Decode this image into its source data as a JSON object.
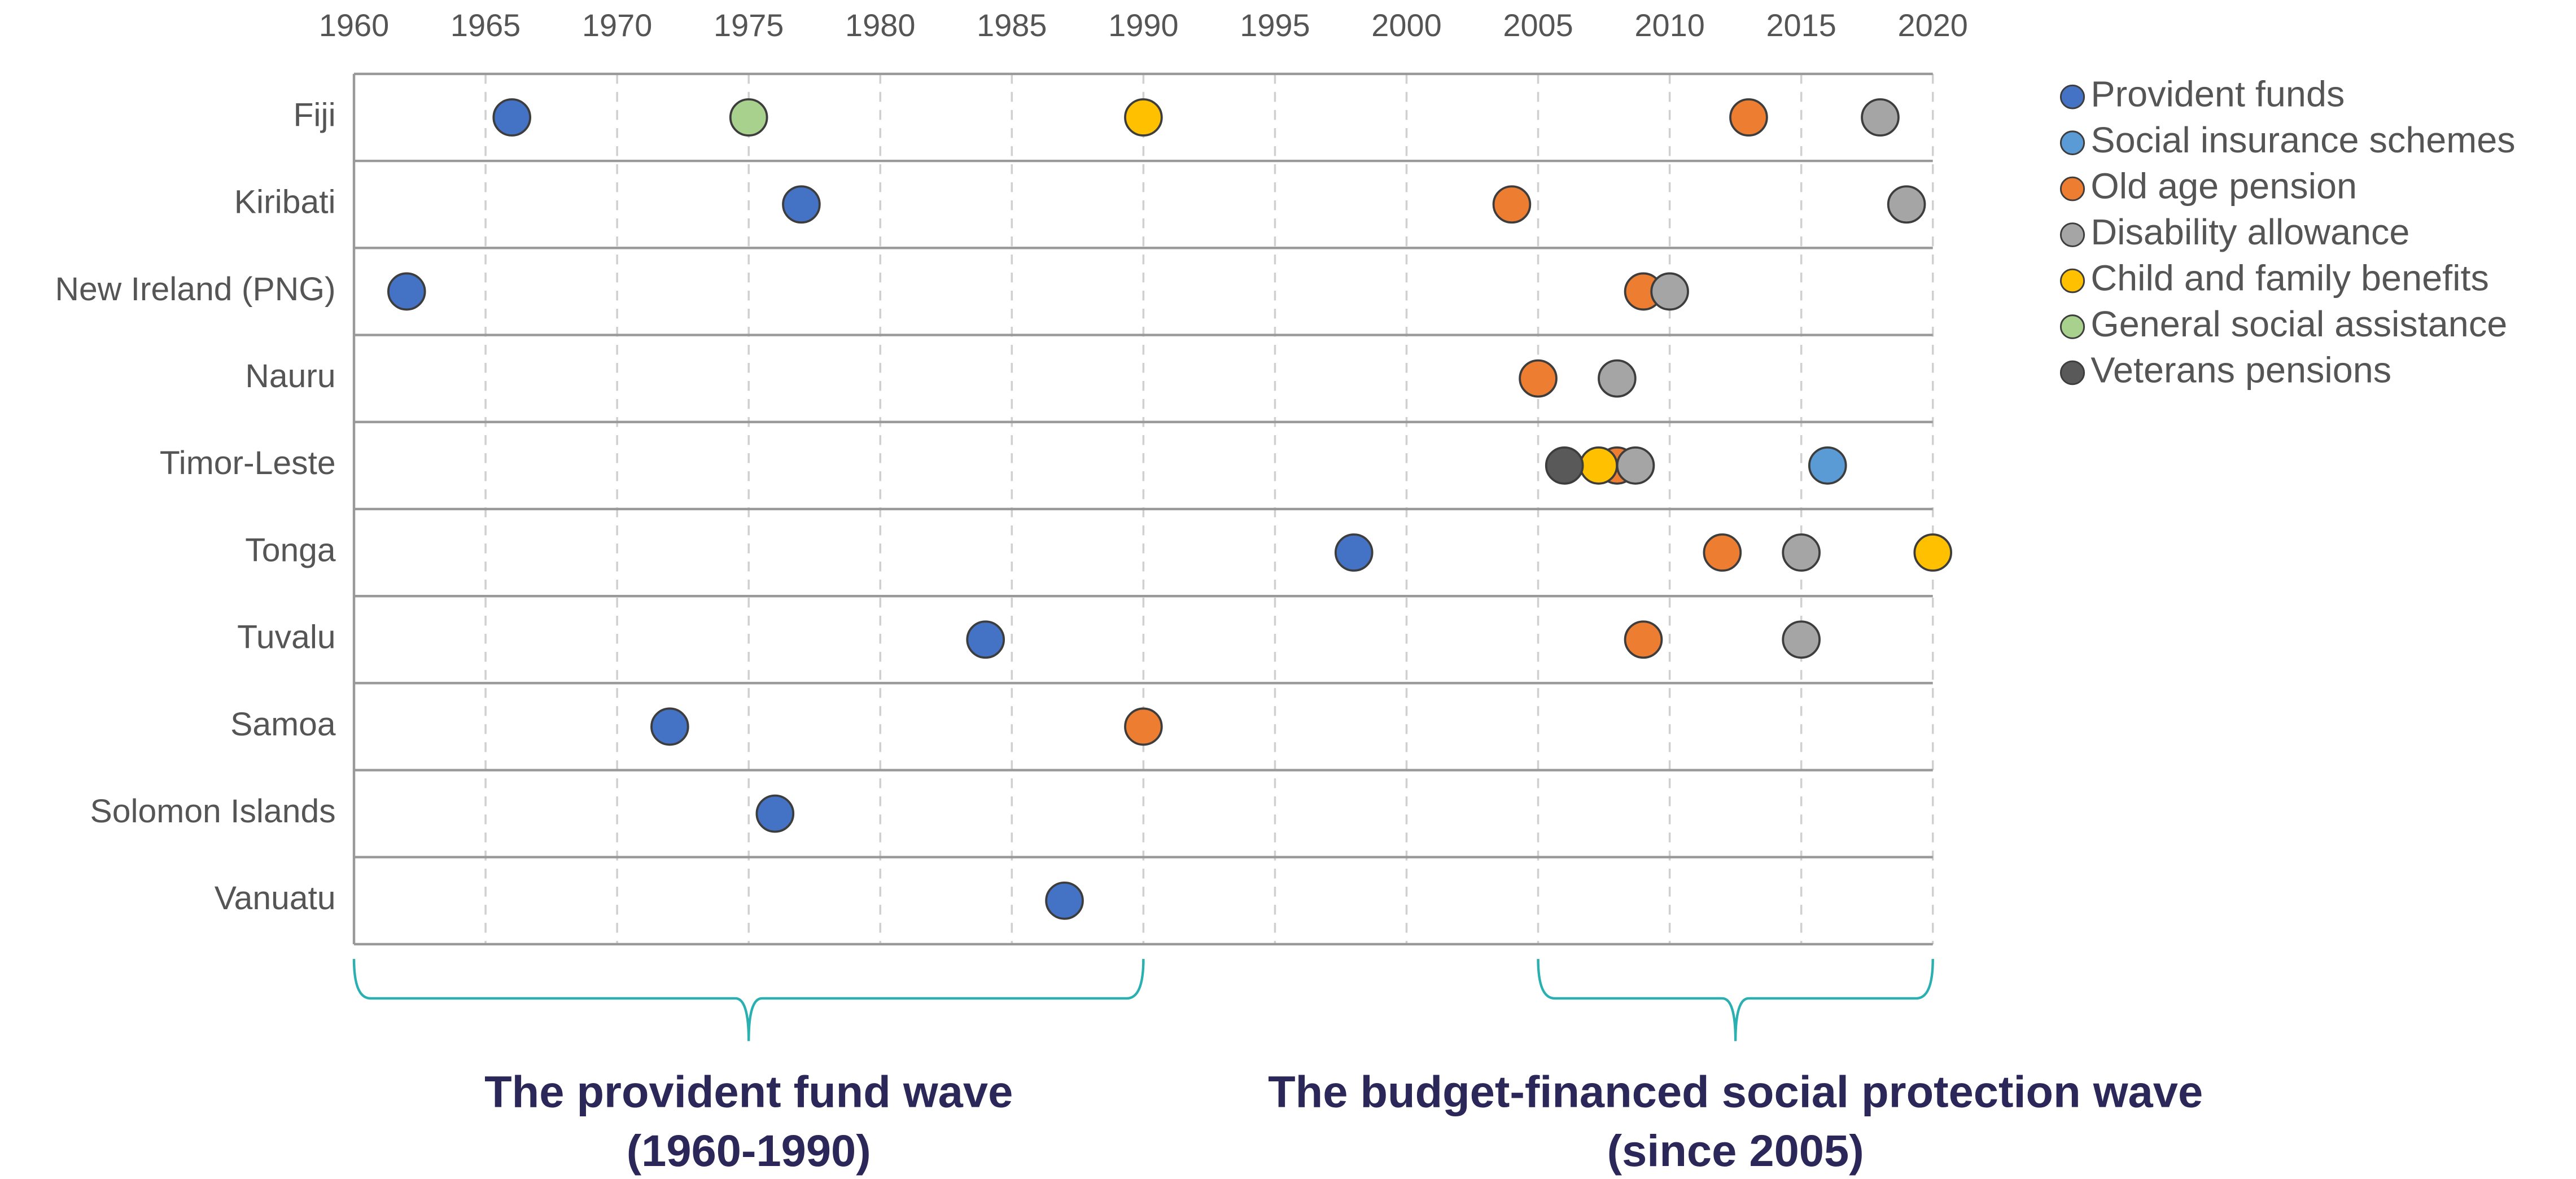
{
  "chart_data": {
    "type": "timeline",
    "categories": [
      "Fiji",
      "Kiribati",
      "New Ireland (PNG)",
      "Nauru",
      "Timor-Leste",
      "Tonga",
      "Tuvalu",
      "Samoa",
      "Solomon Islands",
      "Vanuatu"
    ],
    "series": [
      {
        "name": "Provident funds",
        "color": "#4472c4",
        "values": [
          1966,
          1977,
          1962,
          null,
          null,
          1998,
          1984,
          1972,
          1976,
          1987
        ]
      },
      {
        "name": "Social insurance schemes",
        "color": "#5b9bd5",
        "values": [
          null,
          null,
          null,
          null,
          2016,
          null,
          null,
          null,
          null,
          null
        ]
      },
      {
        "name": "Old age pension",
        "color": "#ed7d31",
        "values": [
          2013,
          2004,
          2009,
          2005,
          2008,
          2012,
          2009,
          1990,
          null,
          null
        ]
      },
      {
        "name": "Disability allowance",
        "color": "#a5a5a5",
        "values": [
          2018,
          2019,
          2010,
          2008,
          2008.7,
          2015,
          2015,
          null,
          null,
          null
        ]
      },
      {
        "name": "Child and family benefits",
        "color": "#ffc000",
        "values": [
          1990,
          null,
          null,
          null,
          2007.3,
          2020,
          null,
          null,
          null,
          null
        ]
      },
      {
        "name": "General social assistance",
        "color": "#a9d18e",
        "values": [
          1975,
          null,
          null,
          null,
          null,
          null,
          null,
          null,
          null,
          null
        ]
      },
      {
        "name": "Veterans pensions",
        "color": "#595959",
        "values": [
          null,
          null,
          null,
          null,
          2006,
          null,
          null,
          null,
          null,
          null
        ]
      }
    ],
    "xlim": [
      1960,
      2020
    ],
    "xticks": [
      1960,
      1965,
      1970,
      1975,
      1980,
      1985,
      1990,
      1995,
      2000,
      2005,
      2010,
      2015,
      2020
    ],
    "grid": true,
    "legend": "right",
    "annotations": [
      {
        "lines": [
          "The provident fund wave",
          "(1960-1990)"
        ],
        "range": [
          1960,
          1990
        ]
      },
      {
        "lines": [
          "The budget-financed social protection wave",
          "(since 2005)"
        ],
        "range": [
          2005,
          2020
        ]
      }
    ]
  }
}
